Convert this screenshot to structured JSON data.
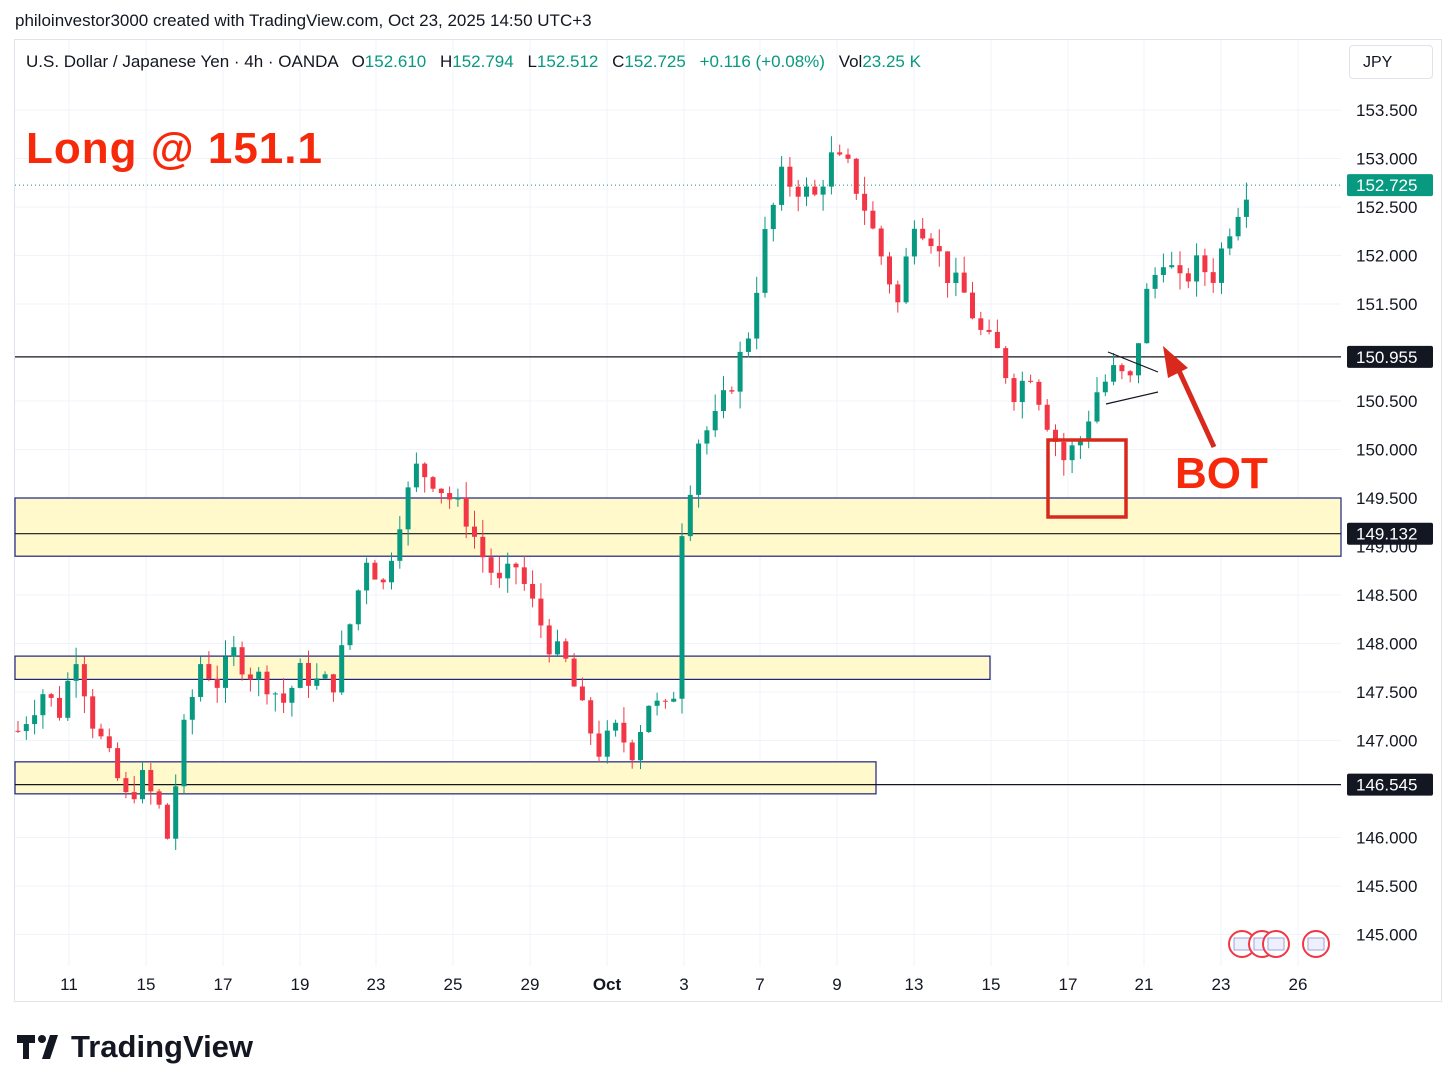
{
  "header": {
    "credit": "philoinvestor3000 created with TradingView.com, Oct 23, 2025 14:50 UTC+3"
  },
  "legend": {
    "symbol": "U.S. Dollar / Japanese Yen · 4h · OANDA",
    "open_label": "O",
    "open": "152.610",
    "high_label": "H",
    "high": "152.794",
    "low_label": "L",
    "low": "152.512",
    "close_label": "C",
    "close": "152.725",
    "change": "+0.116 (+0.08%)",
    "vol_label": "Vol",
    "vol": "23.25 K"
  },
  "currency_button": "JPY",
  "annotation": {
    "title": "Long @ 151.1",
    "bot_label": "BOT"
  },
  "footer": {
    "brand": "TradingView"
  },
  "colors": {
    "up": "#089981",
    "down": "#f23645",
    "annotation_red": "#f7290b",
    "zone_fill": "#fff9cc",
    "zone_border": "#1a237e",
    "price_line": "#131722"
  },
  "chart_data": {
    "type": "candlestick",
    "y_axis_ticks": [
      "153.500",
      "153.000",
      "152.500",
      "152.000",
      "151.500",
      "150.500",
      "150.000",
      "149.500",
      "149.000",
      "148.500",
      "148.000",
      "147.500",
      "147.000",
      "146.000",
      "145.500",
      "145.000"
    ],
    "ylim": [
      144.6,
      154.0
    ],
    "x_axis_ticks": [
      "11",
      "15",
      "17",
      "19",
      "23",
      "25",
      "29",
      "Oct",
      "3",
      "7",
      "9",
      "13",
      "15",
      "17",
      "21",
      "23",
      "26"
    ],
    "current_price": "152.725",
    "horizontal_lines": [
      {
        "price": "150.955"
      },
      {
        "price": "149.132"
      },
      {
        "price": "146.545"
      }
    ],
    "zones": [
      {
        "low": 148.9,
        "high": 149.5
      },
      {
        "low": 147.63,
        "high": 147.87
      },
      {
        "low": 146.45,
        "high": 146.78
      }
    ],
    "path": [
      [
        0,
        147.1
      ],
      [
        3,
        147.5
      ],
      [
        5,
        147.3
      ],
      [
        7,
        147.9
      ],
      [
        9,
        147.2
      ],
      [
        11,
        146.8
      ],
      [
        13,
        146.4
      ],
      [
        15,
        146.6
      ],
      [
        17,
        146.3
      ],
      [
        18,
        146.0
      ],
      [
        20,
        147.1
      ],
      [
        22,
        147.8
      ],
      [
        24,
        147.6
      ],
      [
        26,
        147.9
      ],
      [
        28,
        147.7
      ],
      [
        30,
        147.6
      ],
      [
        32,
        147.4
      ],
      [
        34,
        147.7
      ],
      [
        36,
        147.6
      ],
      [
        38,
        147.6
      ],
      [
        40,
        148.2
      ],
      [
        42,
        148.9
      ],
      [
        44,
        148.6
      ],
      [
        46,
        149.3
      ],
      [
        48,
        149.8
      ],
      [
        50,
        149.7
      ],
      [
        52,
        149.5
      ],
      [
        54,
        149.3
      ],
      [
        56,
        148.9
      ],
      [
        58,
        148.6
      ],
      [
        60,
        148.8
      ],
      [
        62,
        148.4
      ],
      [
        64,
        148.0
      ],
      [
        66,
        147.8
      ],
      [
        68,
        147.3
      ],
      [
        70,
        146.9
      ],
      [
        72,
        147.1
      ],
      [
        74,
        146.9
      ],
      [
        76,
        147.4
      ],
      [
        78,
        147.3
      ],
      [
        79,
        147.5
      ],
      [
        80,
        149.2
      ],
      [
        82,
        150.1
      ],
      [
        84,
        150.3
      ],
      [
        86,
        150.7
      ],
      [
        88,
        151.2
      ],
      [
        90,
        152.2
      ],
      [
        92,
        152.8
      ],
      [
        94,
        152.7
      ],
      [
        96,
        152.6
      ],
      [
        98,
        153.0
      ],
      [
        100,
        152.9
      ],
      [
        102,
        152.5
      ],
      [
        104,
        152.0
      ],
      [
        106,
        151.5
      ],
      [
        108,
        152.4
      ],
      [
        110,
        152.2
      ],
      [
        112,
        151.8
      ],
      [
        114,
        151.6
      ],
      [
        116,
        151.2
      ],
      [
        118,
        151.0
      ],
      [
        120,
        150.6
      ],
      [
        122,
        150.8
      ],
      [
        124,
        150.3
      ],
      [
        126,
        149.9
      ],
      [
        128,
        150.1
      ],
      [
        130,
        150.6
      ],
      [
        132,
        150.8
      ],
      [
        134,
        150.7
      ],
      [
        136,
        151.6
      ],
      [
        138,
        152.0
      ],
      [
        140,
        151.7
      ],
      [
        142,
        151.9
      ],
      [
        144,
        151.8
      ],
      [
        146,
        152.3
      ],
      [
        148,
        152.7
      ]
    ]
  }
}
